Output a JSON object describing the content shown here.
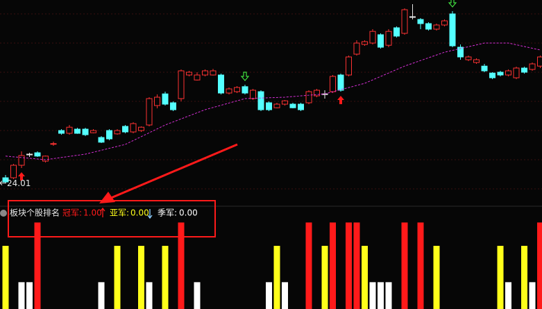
{
  "chart_data": [
    {
      "type": "candlestick",
      "open": [
        24.2,
        24.2,
        24.65,
        25.05,
        25.1,
        24.8,
        25.42,
        25.9,
        25.8,
        25.95,
        25.95,
        25.82,
        25.65,
        25.9,
        25.78,
        26.05,
        25.85,
        25.9,
        26.1,
        26.8,
        27.22,
        26.9,
        27.05,
        27.9,
        27.72,
        27.9,
        27.9,
        27.9,
        27.25,
        27.3,
        27.48,
        27.05,
        27.3,
        26.9,
        26.72,
        26.85,
        26.85,
        26.85,
        26.9,
        27.15,
        27.22,
        27.3,
        27.9,
        27.9,
        28.65,
        29.0,
        29.05,
        29.35,
        28.97,
        29.6,
        29.4,
        30.0,
        29.9,
        29.75,
        29.55,
        29.7,
        30.1,
        28.9,
        28.45,
        28.35,
        28.22,
        27.97,
        28.0,
        27.9,
        27.8,
        28.15,
        28.1,
        28.22
      ],
      "high": [
        24.3,
        24.7,
        25.15,
        25.1,
        25.15,
        25.0,
        25.5,
        25.95,
        26.1,
        26.0,
        26.0,
        25.95,
        25.7,
        25.95,
        25.95,
        26.1,
        26.2,
        26.05,
        27.1,
        27.2,
        27.3,
        26.95,
        28.1,
        28.05,
        28.0,
        28.1,
        28.12,
        27.95,
        27.45,
        27.5,
        27.55,
        27.4,
        27.35,
        26.95,
        26.9,
        27.0,
        26.9,
        26.9,
        27.35,
        27.4,
        27.35,
        27.9,
        27.95,
        28.6,
        29.15,
        29.15,
        29.55,
        29.4,
        29.55,
        29.65,
        30.3,
        30.45,
        29.95,
        29.8,
        29.75,
        29.9,
        30.2,
        29.0,
        28.6,
        28.5,
        28.3,
        28.0,
        28.05,
        28.1,
        28.2,
        28.2,
        28.35,
        28.6
      ],
      "low": [
        24.01,
        24.15,
        24.55,
        24.95,
        24.95,
        24.75,
        25.35,
        25.75,
        25.75,
        25.78,
        25.7,
        25.8,
        25.45,
        25.55,
        25.75,
        25.8,
        25.8,
        25.85,
        26.05,
        26.7,
        26.8,
        26.6,
        26.95,
        27.85,
        27.7,
        27.85,
        27.88,
        27.2,
        27.2,
        27.25,
        27.2,
        27.0,
        26.6,
        26.6,
        26.7,
        26.8,
        26.7,
        26.6,
        26.85,
        27.1,
        27.05,
        27.25,
        27.3,
        27.85,
        28.6,
        28.95,
        29.0,
        28.85,
        28.9,
        29.25,
        29.35,
        29.9,
        29.55,
        29.5,
        29.5,
        29.65,
        28.9,
        28.45,
        28.4,
        28.3,
        28.0,
        27.75,
        27.85,
        27.85,
        27.75,
        27.95,
        28.05,
        28.15
      ],
      "close": [
        24.05,
        24.65,
        25.0,
        25.05,
        24.98,
        24.98,
        25.43,
        25.8,
        26.02,
        25.8,
        25.75,
        25.9,
        25.48,
        25.6,
        25.9,
        25.85,
        26.15,
        26.02,
        27.05,
        27.1,
        26.85,
        26.65,
        28.05,
        28.0,
        27.9,
        28.05,
        28.05,
        27.25,
        27.4,
        27.45,
        27.25,
        27.35,
        26.65,
        26.65,
        26.85,
        26.97,
        26.72,
        26.65,
        27.3,
        27.35,
        27.22,
        27.85,
        27.35,
        28.55,
        29.05,
        29.1,
        29.47,
        28.9,
        29.47,
        29.3,
        30.25,
        30.0,
        29.75,
        29.55,
        29.7,
        29.85,
        28.95,
        28.55,
        28.55,
        28.45,
        28.05,
        27.8,
        27.9,
        28.05,
        28.15,
        28.0,
        28.3,
        28.55
      ],
      "up_color": "#ff3232",
      "down_color": "#54ffff",
      "flat_color": "#e6e6e6",
      "ma": {
        "color": "#d62fd6",
        "x": [
          0,
          5,
          10,
          15,
          20,
          25,
          30,
          35,
          40,
          45,
          50,
          55,
          60,
          63,
          67
        ],
        "values": [
          24.98,
          24.85,
          25.05,
          25.4,
          26.1,
          26.65,
          27.05,
          27.1,
          27.22,
          27.6,
          28.22,
          28.72,
          29.05,
          29.05,
          28.8
        ]
      },
      "buy_signals": [
        2,
        42
      ],
      "sell_signals": [
        30,
        56
      ],
      "low_label": 24.01,
      "ylim": [
        23.35,
        30.6
      ],
      "yticks": [
        30.1,
        29.05,
        28.0,
        26.95,
        25.9,
        24.85,
        23.8
      ],
      "grid": true
    },
    {
      "type": "bar",
      "title": "板块个股排名",
      "ylim": [
        0,
        1.18
      ],
      "series": [
        {
          "name": "冠军:",
          "color": "#ff1a1a",
          "current": 1,
          "current_label": "1.00",
          "x": [
            4,
            22,
            38,
            41,
            43,
            44,
            50,
            52,
            67
          ],
          "values": [
            1,
            1,
            1,
            1,
            1,
            1,
            1,
            1,
            1
          ]
        },
        {
          "name": "亚军:",
          "color": "#ffff1a",
          "current": 0,
          "current_label": "0.00",
          "x": [
            0,
            14,
            17,
            20,
            34,
            40,
            45,
            54,
            62,
            65
          ],
          "values": [
            0.73,
            0.73,
            0.73,
            0.73,
            0.73,
            0.73,
            0.73,
            0.73,
            0.73,
            0.73
          ]
        },
        {
          "name": "季军:",
          "color": "#ffffff",
          "current": 0,
          "current_label": "0.00",
          "x": [
            2,
            3,
            12,
            18,
            24,
            33,
            35,
            46,
            47,
            48,
            63,
            66
          ],
          "values": [
            0.31,
            0.31,
            0.31,
            0.31,
            0.31,
            0.31,
            0.31,
            0.31,
            0.31,
            0.31,
            0.31,
            0.31
          ]
        }
      ]
    }
  ]
}
